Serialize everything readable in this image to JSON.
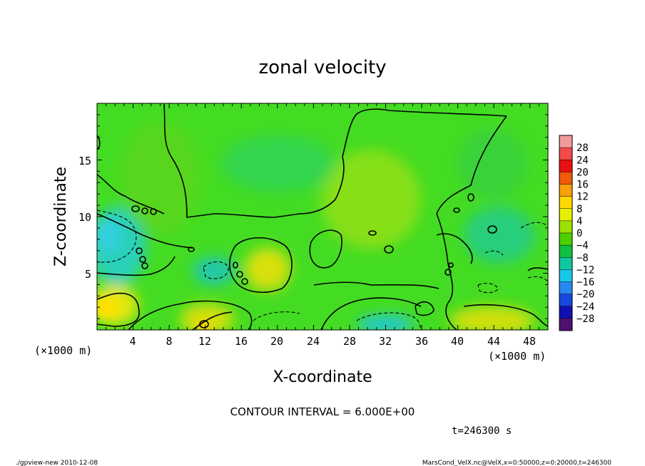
{
  "chart_data": {
    "type": "heatmap",
    "title": "zonal velocity",
    "xlabel": "X-coordinate",
    "ylabel": "Z-coordinate",
    "x_unit": "(×1000 m)",
    "y_unit": "(×1000 m)",
    "x_ticks": [
      "4",
      "8",
      "12",
      "16",
      "20",
      "24",
      "28",
      "32",
      "36",
      "40",
      "44",
      "48"
    ],
    "y_ticks": [
      "5",
      "10",
      "15"
    ],
    "x_range": [
      0,
      50
    ],
    "y_range": [
      0,
      20
    ],
    "colorbar": {
      "labels": [
        "28",
        "24",
        "20",
        "16",
        "12",
        "8",
        "4",
        "0",
        "−4",
        "−8",
        "−12",
        "−16",
        "−20",
        "−24",
        "−28"
      ],
      "colors": [
        "#f29a9a",
        "#f24a4a",
        "#e81010",
        "#f05a08",
        "#f7a00a",
        "#ffd800",
        "#e6f000",
        "#9be000",
        "#4cd000",
        "#10c040",
        "#10c8a0",
        "#18c8e8",
        "#2888f0",
        "#1848e0",
        "#1010b0",
        "#501070"
      ]
    },
    "contour_interval": "CONTOUR INTERVAL = 6.000E+00",
    "time_label": "t=246300 s",
    "footer_left": "./gpview-new   2010-12-08",
    "footer_right": "MarsCond_VelX.nc@VelX,x=0:50000,z=0:20000,t=246300",
    "colors": {
      "background": "#44dc22",
      "frame": "#000000"
    }
  }
}
